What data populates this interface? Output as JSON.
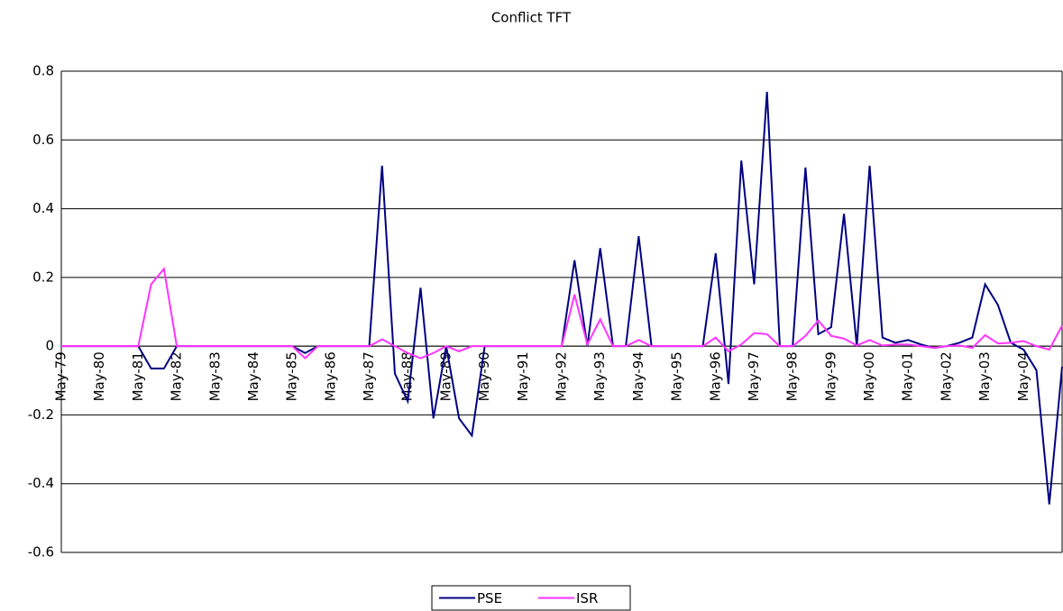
{
  "chart_data": {
    "type": "line",
    "title": "Conflict TFT",
    "categories": [
      "May-79",
      null,
      null,
      "May-80",
      null,
      null,
      "May-81",
      null,
      null,
      "May-82",
      null,
      null,
      "May-83",
      null,
      null,
      "May-84",
      null,
      null,
      "May-85",
      null,
      null,
      "May-86",
      null,
      null,
      "May-87",
      null,
      null,
      "May-88",
      null,
      null,
      "May-89",
      null,
      null,
      "May-90",
      null,
      null,
      "May-91",
      null,
      null,
      "May-92",
      null,
      null,
      "May-93",
      null,
      null,
      "May-94",
      null,
      null,
      "May-95",
      null,
      null,
      "May-96",
      null,
      null,
      "May-97",
      null,
      null,
      "May-98",
      null,
      null,
      "May-99",
      null,
      null,
      "May-00",
      null,
      null,
      "May-01",
      null,
      null,
      "May-02",
      null,
      null,
      "May-03",
      null,
      null,
      "May-04",
      null,
      null,
      null
    ],
    "series": [
      {
        "name": "PSE",
        "color": "#000080",
        "values": [
          0,
          0,
          0,
          0,
          0,
          0,
          0,
          -0.065,
          -0.065,
          0,
          0,
          0,
          0,
          0,
          0,
          0,
          0,
          0,
          0,
          -0.02,
          0,
          0,
          0,
          0,
          0,
          0.525,
          -0.08,
          -0.16,
          0.17,
          -0.21,
          0,
          -0.21,
          -0.26,
          0,
          0,
          0,
          0,
          0,
          0,
          0,
          0.25,
          0,
          0.285,
          0,
          0,
          0.32,
          0,
          0,
          0,
          0,
          0,
          0.27,
          -0.11,
          0.54,
          0.18,
          0.74,
          0,
          0,
          0.52,
          0.035,
          0.055,
          0.385,
          0,
          0.525,
          0.025,
          0.01,
          0.018,
          0.005,
          -0.005,
          0,
          0.01,
          0.025,
          0.18,
          0.12,
          0.01,
          -0.01,
          -0.07,
          -0.46,
          -0.06
        ]
      },
      {
        "name": "ISR",
        "color": "#ff33ff",
        "values": [
          0,
          0,
          0,
          0,
          0,
          0,
          0,
          0.18,
          0.225,
          0,
          0,
          0,
          0,
          0,
          0,
          0,
          0,
          0,
          0,
          -0.035,
          0,
          0,
          0,
          0,
          0,
          0.02,
          0,
          -0.02,
          -0.035,
          -0.02,
          0,
          -0.015,
          0,
          0,
          0,
          0,
          0,
          0,
          0,
          0,
          0.15,
          0.005,
          0.078,
          0,
          0,
          0.018,
          0,
          0,
          0,
          0,
          0,
          0.025,
          -0.015,
          0.005,
          0.038,
          0.035,
          0,
          0,
          0.03,
          0.075,
          0.03,
          0.022,
          0.002,
          0.018,
          0.002,
          0.005,
          0.005,
          0,
          -0.005,
          0,
          0.002,
          -0.005,
          0.032,
          0.008,
          0.01,
          0.015,
          0,
          -0.01,
          0.06
        ]
      }
    ],
    "ylim": [
      -0.6,
      0.8
    ],
    "yticks": [
      -0.6,
      -0.4,
      -0.2,
      0,
      0.2,
      0.4,
      0.6,
      0.8
    ],
    "grid": true,
    "legend": "bottom"
  }
}
